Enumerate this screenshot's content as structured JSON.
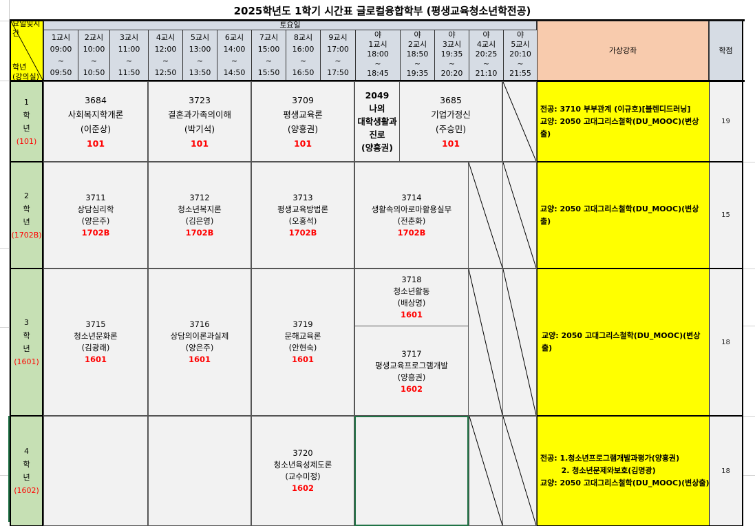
{
  "title": "2025학년도 1학기 시간표 글로컬융합학부 (평생교육청소년학전공)",
  "corner": {
    "top": "요일및시간",
    "bottom1": "학년",
    "bottom2": "(강의실)"
  },
  "day": "토요일",
  "periods": [
    {
      "n": "1교시",
      "s": "09:00",
      "e": "09:50"
    },
    {
      "n": "2교시",
      "s": "10:00",
      "e": "10:50"
    },
    {
      "n": "3교시",
      "s": "11:00",
      "e": "11:50"
    },
    {
      "n": "4교시",
      "s": "12:00",
      "e": "12:50"
    },
    {
      "n": "5교시",
      "s": "13:00",
      "e": "13:50"
    },
    {
      "n": "6교시",
      "s": "14:00",
      "e": "14:50"
    },
    {
      "n": "7교시",
      "s": "15:00",
      "e": "15:50"
    },
    {
      "n": "8교시",
      "s": "16:00",
      "e": "16:50"
    },
    {
      "n": "9교시",
      "s": "17:00",
      "e": "17:50"
    },
    {
      "n": "야\n1교시",
      "s": "18:00",
      "e": "18:45"
    },
    {
      "n": "야\n2교시",
      "s": "18:50",
      "e": "19:35"
    },
    {
      "n": "야\n3교시",
      "s": "19:35",
      "e": "20:20"
    },
    {
      "n": "야\n4교시",
      "s": "20:25",
      "e": "21:10"
    },
    {
      "n": "야\n5교시",
      "s": "20:10",
      "e": "21:55"
    }
  ],
  "tilde": "~",
  "virtual_header": "가상강좌",
  "credit_header": "학점",
  "grades": [
    {
      "num": "1",
      "hak": "학",
      "nyeon": "년",
      "room": "(101)"
    },
    {
      "num": "2",
      "hak": "학",
      "nyeon": "년",
      "room": "(1702B)"
    },
    {
      "num": "3",
      "hak": "학",
      "nyeon": "년",
      "room": "(1601)"
    },
    {
      "num": "4",
      "hak": "학",
      "nyeon": "년",
      "room": "(1602)"
    }
  ],
  "courses": {
    "c3684": {
      "code": "3684",
      "name": "사회복지학개론",
      "prof": "(이준상)",
      "room": "101"
    },
    "c3723": {
      "code": "3723",
      "name": "결혼과가족의이해",
      "prof": "(박기석)",
      "room": "101"
    },
    "c3709": {
      "code": "3709",
      "name": "평생교육론",
      "prof": "(양흥권)",
      "room": "101"
    },
    "c2049": {
      "code": "2049",
      "name1": "나의",
      "name2": "대학생활과",
      "name3": "진로",
      "prof": "(양흥권)"
    },
    "c3685": {
      "code": "3685",
      "name": "기업가정신",
      "prof": "(주승민)",
      "room": "101"
    },
    "c3711": {
      "code": "3711",
      "name": "상담심리학",
      "prof": "(양은주)",
      "room": "1702B"
    },
    "c3712": {
      "code": "3712",
      "name": "청소년복지론",
      "prof": "(김은영)",
      "room": "1702B"
    },
    "c3713": {
      "code": "3713",
      "name": "평생교육방법론",
      "prof": "(오홍석)",
      "room": "1702B"
    },
    "c3714": {
      "code": "3714",
      "name": "생활속의아로마활용실무",
      "prof": "(전춘화)",
      "room": "1702B"
    },
    "c3715": {
      "code": "3715",
      "name": "청소년문화론",
      "prof": "(김광래)",
      "room": "1601"
    },
    "c3716": {
      "code": "3716",
      "name": "상담의이론과실제",
      "prof": "(양은주)",
      "room": "1601"
    },
    "c3719": {
      "code": "3719",
      "name": "문해교육론",
      "prof": "(안현숙)",
      "room": "1601"
    },
    "c3718": {
      "code": "3718",
      "name": "청소년활동",
      "prof": "(배상명)",
      "room": "1601"
    },
    "c3717": {
      "code": "3717",
      "name": "평생교육프로그램개발",
      "prof": "(양흥권)",
      "room": "1602"
    },
    "c3720": {
      "code": "3720",
      "name": "청소년육성제도론",
      "prof": "(교수미정)",
      "room": "1602"
    }
  },
  "virtual": [
    [
      "전공: 3710 부부관계 (이규호)[블렌디드러닝]",
      "교양: 2050 고대그리스철학(DU_MOOC)(변상출)"
    ],
    [
      "교양: 2050 고대그리스철학(DU_MOOC)(변상출)"
    ],
    [
      "교양: 2050 고대그리스철학(DU_MOOC)(변상출)"
    ],
    [
      "전공: 1.청소년프로그램개발과평가(양흥권)",
      "        2. 청소년문제와보호(김명광)",
      "교양: 2050 고대그리스철학(DU_MOOC)(변상출)"
    ]
  ],
  "credits": [
    "19",
    "15",
    "18",
    "18"
  ],
  "colors": {
    "header": "#d6dce4",
    "grade": "#c6e0b4",
    "virtual": "#ffff00",
    "virtual_header": "#f8cbad",
    "room": "#ff0000",
    "corner": "#ffff00"
  }
}
